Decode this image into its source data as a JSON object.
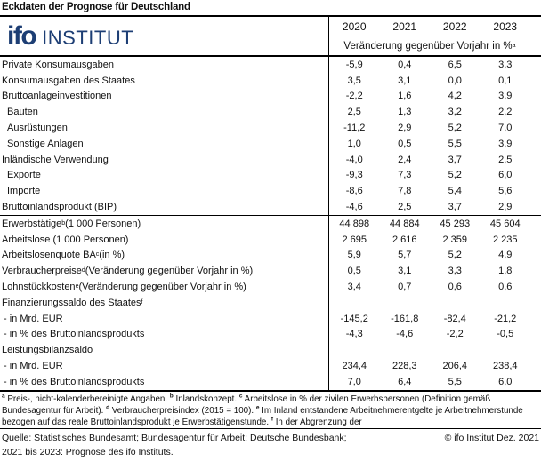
{
  "page_title": "Eckdaten der Prognose für Deutschland",
  "logo": {
    "word1": "ifo",
    "word2": "INSTITUT",
    "color": "#1d3e74"
  },
  "table": {
    "years": [
      "2020",
      "2021",
      "2022",
      "2023"
    ],
    "subheader_text": "Veränderung gegenüber Vorjahr in %",
    "subheader_sup": "a",
    "rows": [
      {
        "pre": "Private Konsumausgaben",
        "sup": "",
        "post": "",
        "indent": 0,
        "sep": false,
        "values": [
          "-5,9",
          "0,4",
          "6,5",
          "3,3"
        ]
      },
      {
        "pre": "Konsumausgaben des Staates",
        "sup": "",
        "post": "",
        "indent": 0,
        "sep": false,
        "values": [
          "3,5",
          "3,1",
          "0,0",
          "0,1"
        ]
      },
      {
        "pre": "Bruttoanlageinvestitionen",
        "sup": "",
        "post": "",
        "indent": 0,
        "sep": false,
        "values": [
          "-2,2",
          "1,6",
          "4,2",
          "3,9"
        ]
      },
      {
        "pre": "Bauten",
        "sup": "",
        "post": "",
        "indent": 1,
        "sep": false,
        "values": [
          "2,5",
          "1,3",
          "3,2",
          "2,2"
        ]
      },
      {
        "pre": "Ausrüstungen",
        "sup": "",
        "post": "",
        "indent": 1,
        "sep": false,
        "values": [
          "-11,2",
          "2,9",
          "5,2",
          "7,0"
        ]
      },
      {
        "pre": "Sonstige Anlagen",
        "sup": "",
        "post": "",
        "indent": 1,
        "sep": false,
        "values": [
          "1,0",
          "0,5",
          "5,5",
          "3,9"
        ]
      },
      {
        "pre": "Inländische Verwendung",
        "sup": "",
        "post": "",
        "indent": 0,
        "sep": false,
        "values": [
          "-4,0",
          "2,4",
          "3,7",
          "2,5"
        ]
      },
      {
        "pre": "Exporte",
        "sup": "",
        "post": "",
        "indent": 1,
        "sep": false,
        "values": [
          "-9,3",
          "7,3",
          "5,2",
          "6,0"
        ]
      },
      {
        "pre": "Importe",
        "sup": "",
        "post": "",
        "indent": 1,
        "sep": false,
        "values": [
          "-8,6",
          "7,8",
          "5,4",
          "5,6"
        ]
      },
      {
        "pre": "Bruttoinlandsprodukt (BIP)",
        "sup": "",
        "post": "",
        "indent": 0,
        "sep": false,
        "values": [
          "-4,6",
          "2,5",
          "3,7",
          "2,9"
        ]
      },
      {
        "pre": "Erwerbstätige",
        "sup": "b",
        "post": " (1 000 Personen)",
        "indent": 0,
        "sep": true,
        "values": [
          "44 898",
          "44 884",
          "45 293",
          "45 604"
        ]
      },
      {
        "pre": "Arbeitslose (1 000 Personen)",
        "sup": "",
        "post": "",
        "indent": 0,
        "sep": false,
        "values": [
          "2 695",
          "2 616",
          "2 359",
          "2 235"
        ]
      },
      {
        "pre": "Arbeitslosenquote BA",
        "sup": "c",
        "post": " (in %)",
        "indent": 0,
        "sep": false,
        "values": [
          "5,9",
          "5,7",
          "5,2",
          "4,9"
        ]
      },
      {
        "pre": "Verbraucherpreise",
        "sup": "d",
        "post": " (Veränderung gegenüber Vorjahr in %)",
        "indent": 0,
        "sep": false,
        "values": [
          "0,5",
          "3,1",
          "3,3",
          "1,8"
        ]
      },
      {
        "pre": "Lohnstückkosten",
        "sup": "e",
        "post": " (Veränderung gegenüber Vorjahr in %)",
        "indent": 0,
        "sep": false,
        "values": [
          "3,4",
          "0,7",
          "0,6",
          "0,6"
        ]
      },
      {
        "pre": "Finanzierungssaldo des Staates",
        "sup": "f",
        "post": "",
        "indent": 0,
        "sep": false,
        "values": [
          "",
          "",
          "",
          ""
        ]
      },
      {
        "pre": "- in Mrd. EUR",
        "sup": "",
        "post": "",
        "indent": 2,
        "sep": false,
        "values": [
          "-145,2",
          "-161,8",
          "-82,4",
          "-21,2"
        ]
      },
      {
        "pre": "- in % des Bruttoinlandsprodukts",
        "sup": "",
        "post": "",
        "indent": 2,
        "sep": false,
        "values": [
          "-4,3",
          "-4,6",
          "-2,2",
          "-0,5"
        ]
      },
      {
        "pre": "Leistungsbilanzsaldo",
        "sup": "",
        "post": "",
        "indent": 0,
        "sep": false,
        "values": [
          "",
          "",
          "",
          ""
        ]
      },
      {
        "pre": "- in Mrd. EUR",
        "sup": "",
        "post": "",
        "indent": 2,
        "sep": false,
        "values": [
          "234,4",
          "228,3",
          "206,4",
          "238,4"
        ]
      },
      {
        "pre": "- in % des Bruttoinlandsprodukts",
        "sup": "",
        "post": "",
        "indent": 2,
        "sep": false,
        "values": [
          "7,0",
          "6,4",
          "5,5",
          "6,0"
        ]
      }
    ]
  },
  "footnote_segments": [
    {
      "sup": "a",
      "text": "Preis-, nicht-kalenderbereinigte Angaben."
    },
    {
      "sup": "b",
      "text": "Inlandskonzept."
    },
    {
      "sup": "c",
      "text": "Arbeitslose in % der zivilen Erwerbspersonen (Definition gemäß Bundesagentur für Arbeit)."
    },
    {
      "sup": "d",
      "text": "Verbraucherpreisindex (2015 = 100)."
    },
    {
      "sup": "e",
      "text": "Im Inland entstandene Arbeitnehmerentgelte je Arbeitnehmerstunde bezogen auf das reale Bruttoinlandsprodukt je Erwerbstätigenstunde."
    },
    {
      "sup": "f",
      "text": "In der Abgrenzung der"
    }
  ],
  "source": {
    "line1_left": "Quelle: Statistisches Bundesamt; Bundesagentur für Arbeit; Deutsche Bundesbank;",
    "line1_right": "© ifo Institut Dez. 2021",
    "line2": "2021 bis 2023: Prognose des ifo Instituts."
  }
}
